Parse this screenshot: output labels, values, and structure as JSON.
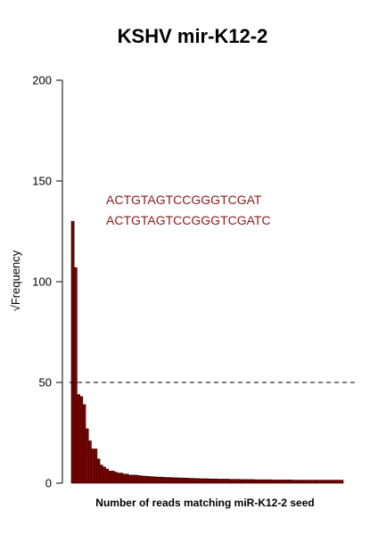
{
  "chart_data": {
    "type": "bar",
    "title": "KSHV mir-K12-2",
    "xlabel": "Number of reads matching miR-K12-2 seed",
    "ylabel": "Frequency",
    "ylabel_prefix": "√",
    "ylim": [
      0,
      200
    ],
    "yticks": [
      0,
      50,
      100,
      150,
      200
    ],
    "grid": false,
    "threshold": 50,
    "annotations": [
      "ACTGTAGTCCGGGTCGAT",
      "ACTGTAGTCCGGGTCGATC"
    ],
    "bar_color": "#7b0000",
    "annotation_color": "#8b1a1a",
    "values": [
      130,
      107,
      44,
      43,
      39,
      27,
      21,
      17,
      17,
      12,
      9,
      8,
      7,
      6,
      6,
      5.5,
      5,
      5,
      4.5,
      4.5,
      4,
      4,
      4,
      3.8,
      3.6,
      3.5,
      3.4,
      3.3,
      3.2,
      3.1,
      3,
      3,
      2.9,
      2.8,
      2.8,
      2.7,
      2.7,
      2.6,
      2.6,
      2.5,
      2.5,
      2.4,
      2.4,
      2.3,
      2.3,
      2.2,
      2.2,
      2.2,
      2.1,
      2.1,
      2.1,
      2,
      2,
      2,
      2,
      1.9,
      1.9,
      1.9,
      1.9,
      1.8,
      1.8,
      1.8,
      1.8,
      1.8,
      1.7,
      1.7,
      1.7,
      1.7,
      1.7,
      1.7,
      1.6,
      1.6,
      1.6,
      1.6,
      1.6,
      1.6,
      1.6,
      1.5,
      1.5,
      1.5,
      1.5,
      1.5,
      1.5,
      1.5,
      1.5,
      1.5,
      1.5,
      1.5,
      1.5,
      1.5,
      1.5,
      1.5,
      1.5,
      1.5,
      1.5
    ]
  }
}
